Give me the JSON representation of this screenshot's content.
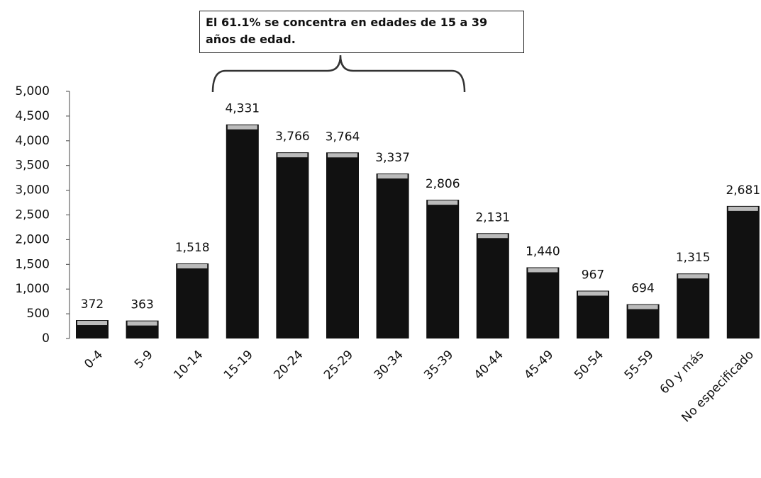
{
  "chart_data": {
    "type": "bar",
    "annotation": "El 61.1% se concentra en edades de 15 a 39 años de edad.",
    "categories": [
      "0-4",
      "5-9",
      "10-14",
      "15-19",
      "20-24",
      "25-29",
      "30-34",
      "35-39",
      "40-44",
      "45-49",
      "50-54",
      "55-59",
      "60 y más",
      "No especificado"
    ],
    "values": [
      372,
      363,
      1518,
      4331,
      3766,
      3764,
      3337,
      2806,
      2131,
      1440,
      967,
      694,
      1315,
      2681
    ],
    "value_labels": [
      "372",
      "363",
      "1,518",
      "4,331",
      "3,766",
      "3,764",
      "3,337",
      "2,806",
      "2,131",
      "1,440",
      "967",
      "694",
      "1,315",
      "2,681"
    ],
    "color": "#111111",
    "ylim": [
      0,
      5000
    ],
    "yticks": [
      0,
      500,
      {
        "value": 1000,
        "label": "1,000"
      },
      {
        "value": 1500,
        "label": "1,500"
      },
      {
        "value": 2000,
        "label": "2,000"
      },
      {
        "value": 2500,
        "label": "2,500"
      },
      {
        "value": 3000,
        "label": "3,000"
      },
      {
        "value": 3500,
        "label": "3,500"
      },
      {
        "value": 4000,
        "label": "4,000"
      },
      {
        "value": 4500,
        "label": "4,500"
      },
      {
        "value": 5000,
        "label": "5,000"
      }
    ]
  }
}
